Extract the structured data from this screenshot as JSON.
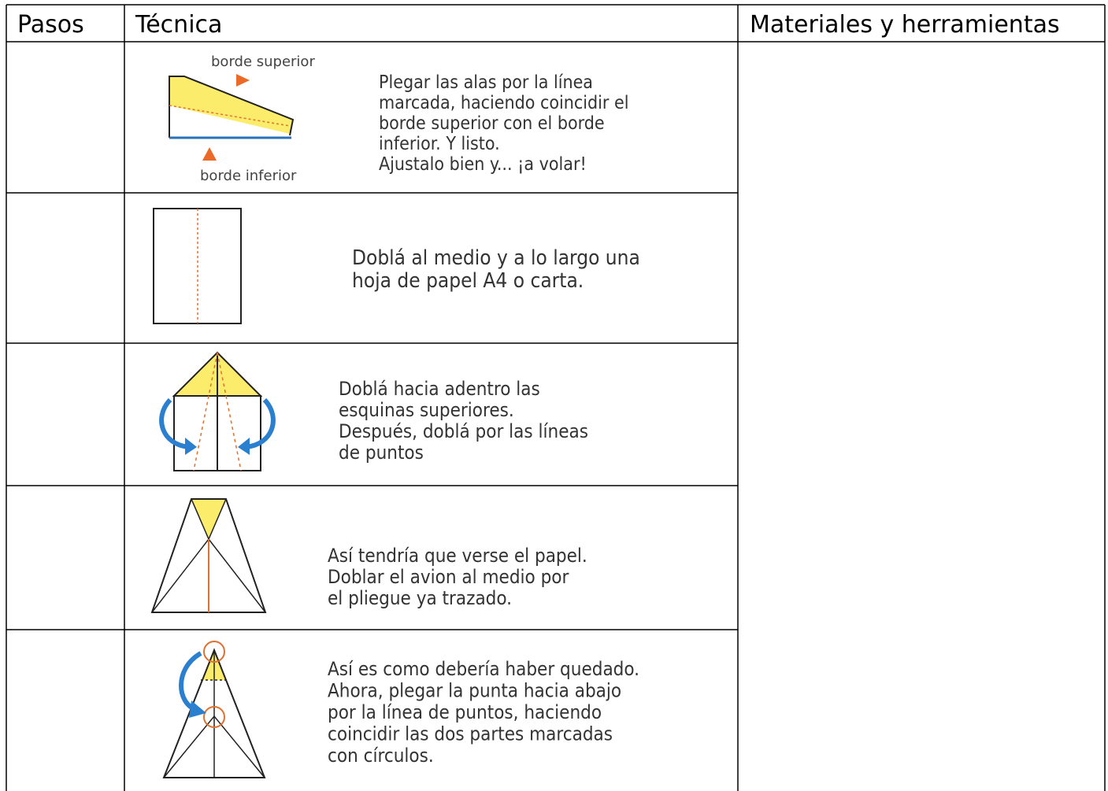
{
  "table": {
    "header": [
      "Pasos",
      "Técnica",
      "Materiales y herramientas"
    ],
    "rows": [
      {
        "labels": [
          "borde superior",
          "borde inferior"
        ],
        "text": [
          "Plegar las alas por la línea",
          "marcada, haciendo coincidir el",
          "borde superior con el borde",
          "inferior. Y listo.",
          "Ajustalo bien y... ¡a volar!"
        ]
      },
      {
        "text": [
          "Doblá al medio y a lo largo una",
          "hoja de papel A4 o carta."
        ]
      },
      {
        "text": [
          "Doblá hacia adentro las",
          "esquinas superiores.",
          "Después, doblá por las líneas",
          "de puntos"
        ]
      },
      {
        "text": [
          "Así tendría que verse el papel.",
          "Doblar el avion al medio por",
          "el pliegue ya trazado."
        ]
      },
      {
        "text": [
          "Así es como debería haber quedado.",
          "Ahora, plegar la punta hacia abajo",
          "por la línea de puntos, haciendo",
          "coincidir las dos partes marcadas",
          "con círculos."
        ]
      }
    ]
  }
}
